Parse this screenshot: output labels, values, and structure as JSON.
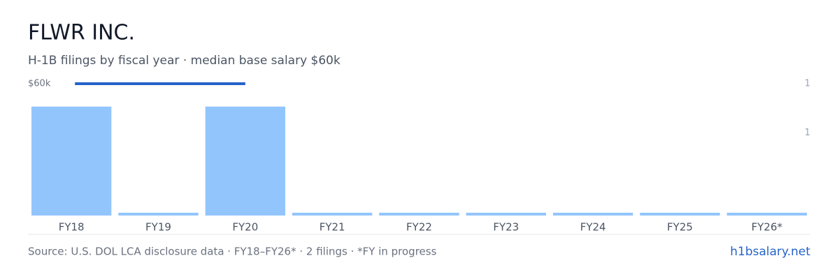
{
  "chart_data": {
    "type": "bar",
    "title": "FLWR INC.",
    "subtitle": "H-1B filings by fiscal year · median base salary $60k",
    "categories": [
      "FY18",
      "FY19",
      "FY20",
      "FY21",
      "FY22",
      "FY23",
      "FY24",
      "FY25",
      "FY26*"
    ],
    "values": [
      1,
      0,
      1,
      0,
      0,
      0,
      0,
      0,
      0
    ],
    "color": "#93c5fd",
    "ylim": [
      0,
      1.21
    ],
    "yticks": [
      {
        "value": 1.21,
        "label": "1"
      },
      {
        "value": 0.76,
        "label": "1"
      }
    ],
    "salary": {
      "values": [
        60000,
        60000,
        60000,
        null,
        null,
        null,
        null,
        null,
        null
      ],
      "label": "$60k",
      "color": "#2563c9"
    },
    "source": "Source: U.S. DOL LCA disclosure data · FY18–FY26* · 2 filings · *FY in progress",
    "link": "h1bsalary.net"
  }
}
